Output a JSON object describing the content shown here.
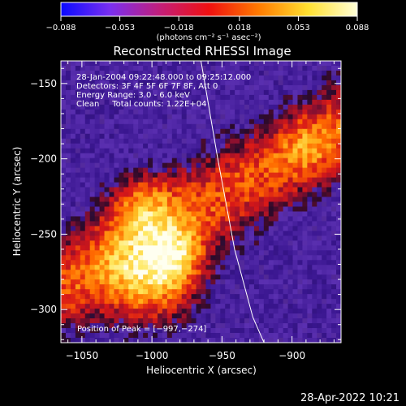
{
  "chart_data": {
    "type": "heatmap",
    "title": "Reconstructed RHESSI Image",
    "xlabel": "Heliocentric X (arcsec)",
    "ylabel": "Heliocentric Y (arcsec)",
    "xlim": [
      -1065,
      -865
    ],
    "ylim": [
      -322,
      -135
    ],
    "x_ticks": [
      -1050,
      -1000,
      -950,
      -900
    ],
    "x_tick_labels": [
      "−1050",
      "−1000",
      "−950",
      "−900"
    ],
    "y_ticks": [
      -150,
      -200,
      -250,
      -300
    ],
    "y_tick_labels": [
      "−150",
      "−200",
      "−250",
      "−300"
    ],
    "colorbar": {
      "min": -0.088,
      "max": 0.088,
      "ticks": [
        -0.088,
        -0.053,
        -0.018,
        0.018,
        0.053,
        0.088
      ],
      "tick_labels": [
        "−0.088",
        "−0.053",
        "−0.018",
        "0.018",
        "0.053",
        "0.088"
      ],
      "units_label": "(photons cm⁻² s⁻¹ asec⁻²)",
      "colors": [
        "#0a0aff",
        "#7a2ff0",
        "#c21e7a",
        "#f01010",
        "#ff7a00",
        "#ffe030",
        "#ffffd8"
      ]
    },
    "annotations": [
      "28-Jan-2004 09:22:48.000 to 09:25:12.000",
      "Detectors: 3F 4F 5F 6F 7F 8F, Att 0",
      "Energy Range: 3.0 - 6.0 keV",
      "Clean     Total counts: 1.22E+04"
    ],
    "peak_label": "Position of Peak = [−997,−274]",
    "peak": [
      -997,
      -274
    ],
    "limb_curve": [
      [
        -965,
        -135
      ],
      [
        -953,
        -200
      ],
      [
        -941,
        -260
      ],
      [
        -928,
        -305
      ],
      [
        -920,
        -322
      ]
    ],
    "grid": false
  },
  "footer": {
    "timestamp": "28-Apr-2022 10:21"
  },
  "colors": {
    "background": "#000000",
    "axes": "#ffffff",
    "text": "#ffffff"
  }
}
